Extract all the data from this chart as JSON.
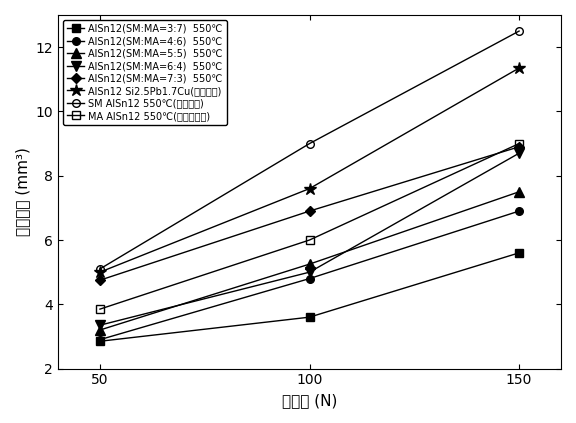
{
  "x": [
    50,
    100,
    150
  ],
  "series": [
    {
      "label": "AlSn12(SM:MA=3:7)  550℃",
      "y": [
        2.85,
        3.6,
        5.6
      ],
      "marker": "s",
      "color": "black",
      "linestyle": "-",
      "fillstyle": "full"
    },
    {
      "label": "AlSn12(SM:MA=4:6)  550℃",
      "y": [
        2.9,
        4.8,
        6.9
      ],
      "marker": "o",
      "color": "black",
      "linestyle": "-",
      "fillstyle": "full"
    },
    {
      "label": "AlSn12(SM:MA=5:5)  550℃",
      "y": [
        3.2,
        5.25,
        7.5
      ],
      "marker": "^",
      "color": "black",
      "linestyle": "-",
      "fillstyle": "full"
    },
    {
      "label": "AlSn12(SM:MA=6:4)  550℃",
      "y": [
        3.35,
        5.0,
        8.7
      ],
      "marker": "v",
      "color": "black",
      "linestyle": "-",
      "fillstyle": "full"
    },
    {
      "label": "AlSn12(SM:MA=7:3)  550℃",
      "y": [
        4.75,
        6.9,
        8.9
      ],
      "marker": "D",
      "color": "black",
      "linestyle": "-",
      "fillstyle": "full"
    },
    {
      "label": "AlSn12 Si2.5Pb1.7Cu(工业轴瓦)",
      "y": [
        5.0,
        7.6,
        11.35
      ],
      "marker": "*",
      "color": "black",
      "linestyle": "-",
      "fillstyle": "full"
    },
    {
      "label": "SM AlSn12 550℃(粉末冶金)",
      "y": [
        5.1,
        9.0,
        12.5
      ],
      "marker": "o",
      "color": "black",
      "linestyle": "-",
      "fillstyle": "none"
    },
    {
      "label": "MA AlSn12 550℃(机械合金化)",
      "y": [
        3.85,
        6.0,
        9.0
      ],
      "marker": "s",
      "color": "black",
      "linestyle": "-",
      "fillstyle": "none"
    }
  ],
  "xlabel": "加载力 (N)",
  "ylabel": "磨损体积 (mm³)",
  "xlim": [
    40,
    160
  ],
  "ylim": [
    2,
    13
  ],
  "xticks": [
    50,
    100,
    150
  ],
  "yticks": [
    2,
    4,
    6,
    8,
    10,
    12
  ],
  "title": ""
}
